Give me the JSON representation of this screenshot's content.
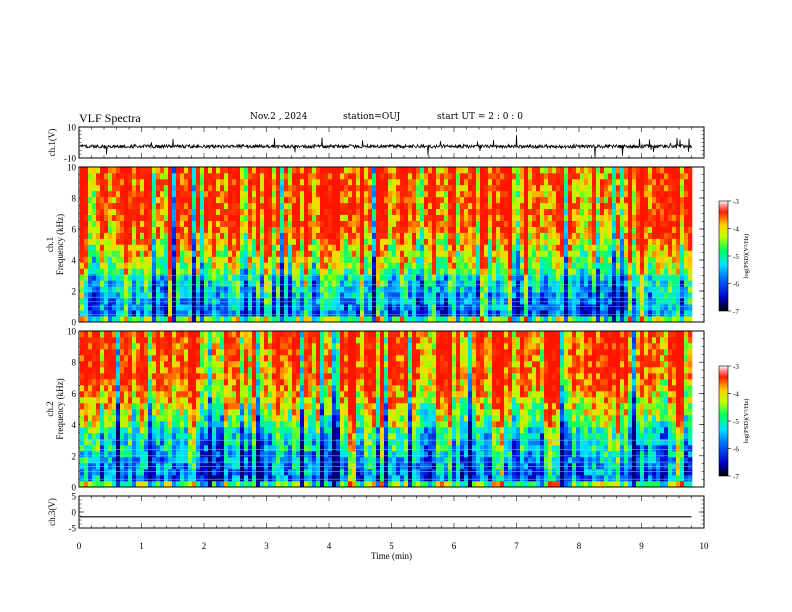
{
  "header": {
    "title": "VLF Spectra",
    "date": "Nov.2 , 2024",
    "station": "station=OUJ",
    "start_ut": "start UT = 2 : 0 : 0"
  },
  "chart_data": [
    {
      "type": "line",
      "ylabel": "ch.1(V)",
      "ylim": [
        -10,
        10
      ],
      "yticks": [
        "10",
        "-10"
      ],
      "description_series": "ch.1 waveform amplitude, approx -2.5 V baseline with spikes"
    },
    {
      "type": "heatmap",
      "ylabel": "ch.1\nFrequency (kHz)",
      "ylim": [
        0,
        10
      ],
      "yticks": [
        "0",
        "2",
        "4",
        "6",
        "8",
        "10"
      ],
      "colorbar": {
        "label": "log(PSD)(V²/Hz)",
        "range": [
          -7,
          -3
        ],
        "ticks": [
          "-3",
          "-4",
          "-5",
          "-6",
          "-7"
        ]
      }
    },
    {
      "type": "heatmap",
      "ylabel": "ch.2\nFrequency (kHz)",
      "ylim": [
        0,
        10
      ],
      "yticks": [
        "0",
        "2",
        "4",
        "6",
        "8",
        "10"
      ],
      "colorbar": {
        "label": "log(PSD)(V²/Hz)",
        "range": [
          -7,
          -3
        ],
        "ticks": [
          "-3",
          "-4",
          "-5",
          "-6",
          "-7"
        ]
      }
    },
    {
      "type": "line",
      "ylabel": "ch.3(V)",
      "ylim": [
        -5,
        5
      ],
      "yticks": [
        "5",
        "0",
        "-5"
      ],
      "constant_value": -1.5
    }
  ],
  "xaxis": {
    "xlabel": "Time (min)",
    "xlim": [
      0,
      10
    ],
    "ticks": [
      "0",
      "1",
      "2",
      "3",
      "4",
      "5",
      "6",
      "7",
      "8",
      "9",
      "10"
    ],
    "data_end": 9.8
  }
}
